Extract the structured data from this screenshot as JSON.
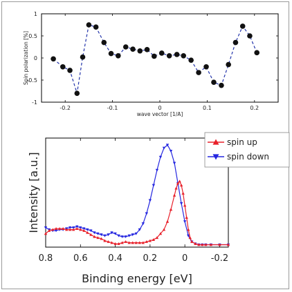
{
  "chart_data": [
    {
      "type": "scatter",
      "title": "",
      "xlabel": "wave vector [1/A]",
      "ylabel": "Spin polarization [%]",
      "xlim": [
        -0.25,
        0.25
      ],
      "ylim": [
        -1,
        1
      ],
      "xticks": [
        "-0.2",
        "-0.1",
        "0",
        "0.1",
        "0.2"
      ],
      "yticks": [
        "1",
        "0.5",
        "0",
        "-0.5",
        "-1"
      ],
      "grid": false,
      "legend": "none",
      "color": "#2233aa",
      "point_color": "#111111",
      "series": [
        {
          "x": [
            -0.225,
            -0.205,
            -0.19,
            -0.175,
            -0.163,
            -0.15,
            -0.135,
            -0.118,
            -0.103,
            -0.088,
            -0.072,
            -0.057,
            -0.042,
            -0.027,
            -0.012,
            0.004,
            0.02,
            0.036,
            0.05,
            0.066,
            0.082,
            0.098,
            0.114,
            0.13,
            0.145,
            0.16,
            0.175,
            0.19,
            0.205
          ],
          "values": [
            -0.02,
            -0.2,
            -0.28,
            -0.8,
            0.02,
            0.75,
            0.7,
            0.35,
            0.1,
            0.05,
            0.25,
            0.2,
            0.16,
            0.19,
            0.04,
            0.11,
            0.05,
            0.08,
            0.05,
            -0.05,
            -0.33,
            -0.2,
            -0.55,
            -0.62,
            -0.15,
            0.35,
            0.72,
            0.5,
            0.12
          ]
        }
      ]
    },
    {
      "type": "line",
      "title": "",
      "xlabel": "Binding energy [eV]",
      "ylabel": "Intensity [a.u.]",
      "xlim": [
        0.8,
        -0.25
      ],
      "xticks": [
        "0.8",
        "0.6",
        "0.4",
        "0.2",
        "0",
        "-0.2"
      ],
      "ylim": [
        0,
        1
      ],
      "grid": false,
      "legend": "top-right",
      "series": [
        {
          "name": "spin up",
          "color": "#e8202a",
          "marker": "triangle-up",
          "x": [
            0.8,
            0.78,
            0.76,
            0.74,
            0.72,
            0.7,
            0.68,
            0.66,
            0.64,
            0.62,
            0.6,
            0.58,
            0.56,
            0.54,
            0.52,
            0.5,
            0.48,
            0.46,
            0.44,
            0.42,
            0.4,
            0.38,
            0.36,
            0.34,
            0.32,
            0.3,
            0.28,
            0.26,
            0.24,
            0.22,
            0.2,
            0.18,
            0.16,
            0.14,
            0.12,
            0.1,
            0.08,
            0.06,
            0.05,
            0.04,
            0.03,
            0.02,
            0.01,
            0.0,
            -0.01,
            -0.02,
            -0.03,
            -0.04,
            -0.06,
            -0.08,
            -0.1,
            -0.12,
            -0.15,
            -0.2,
            -0.25
          ],
          "values": [
            0.12,
            0.15,
            0.16,
            0.17,
            0.17,
            0.17,
            0.16,
            0.16,
            0.16,
            0.17,
            0.16,
            0.15,
            0.13,
            0.11,
            0.09,
            0.08,
            0.07,
            0.05,
            0.04,
            0.03,
            0.02,
            0.02,
            0.03,
            0.04,
            0.03,
            0.03,
            0.03,
            0.03,
            0.03,
            0.04,
            0.05,
            0.06,
            0.08,
            0.12,
            0.16,
            0.24,
            0.36,
            0.5,
            0.57,
            0.62,
            0.64,
            0.6,
            0.52,
            0.4,
            0.28,
            0.16,
            0.08,
            0.04,
            0.02,
            0.01,
            0.01,
            0.01,
            0.01,
            0.01,
            0.01
          ]
        },
        {
          "name": "spin down",
          "color": "#2426e0",
          "marker": "triangle-down",
          "x": [
            0.8,
            0.78,
            0.76,
            0.74,
            0.72,
            0.7,
            0.68,
            0.66,
            0.64,
            0.62,
            0.6,
            0.58,
            0.56,
            0.54,
            0.52,
            0.5,
            0.48,
            0.46,
            0.44,
            0.42,
            0.4,
            0.38,
            0.36,
            0.34,
            0.32,
            0.3,
            0.28,
            0.26,
            0.24,
            0.22,
            0.2,
            0.18,
            0.16,
            0.14,
            0.12,
            0.1,
            0.08,
            0.06,
            0.04,
            0.02,
            0.0,
            -0.02,
            -0.04,
            -0.06,
            -0.08,
            -0.1,
            -0.12,
            -0.15,
            -0.2,
            -0.25
          ],
          "values": [
            0.18,
            0.16,
            0.15,
            0.15,
            0.16,
            0.16,
            0.17,
            0.18,
            0.18,
            0.19,
            0.18,
            0.17,
            0.16,
            0.15,
            0.13,
            0.12,
            0.11,
            0.1,
            0.11,
            0.13,
            0.12,
            0.1,
            0.09,
            0.09,
            0.1,
            0.11,
            0.12,
            0.16,
            0.22,
            0.32,
            0.45,
            0.6,
            0.75,
            0.88,
            0.97,
            1.0,
            0.94,
            0.82,
            0.62,
            0.42,
            0.24,
            0.1,
            0.04,
            0.02,
            0.01,
            0.01,
            0.01,
            0.01,
            0.01,
            0.01
          ]
        }
      ]
    }
  ]
}
